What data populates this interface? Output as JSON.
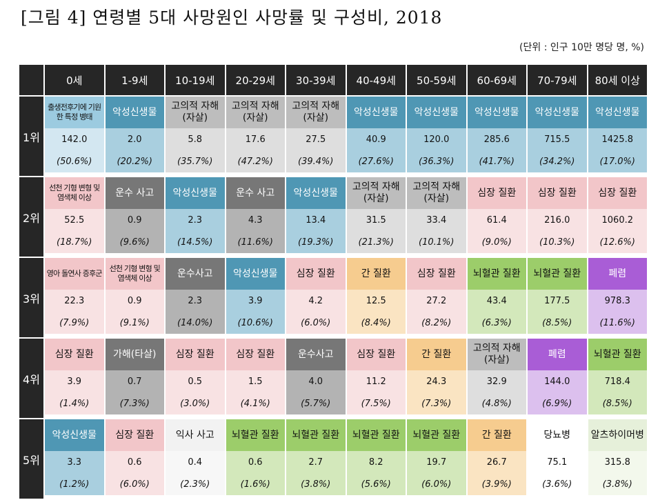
{
  "title": "[그림 4] 연령별 5대 사망원인 사망률 및 구성비, 2018",
  "unit": "(단위 : 인구 10만 명당 명, %)",
  "age_groups": [
    "0세",
    "1-9세",
    "10-19세",
    "20-29세",
    "30-39세",
    "40-49세",
    "50-59세",
    "60-69세",
    "70-79세",
    "80세 이상"
  ],
  "ranks": [
    {
      "label": "1위",
      "cells": [
        {
          "cause": "출생전후기에 기원한 특정 병태",
          "rate": "142.0",
          "pct": "(50.6%)",
          "cat": "perinatal",
          "small": true
        },
        {
          "cause": "악성신생물",
          "rate": "2.0",
          "pct": "(20.2%)",
          "cat": "cancer"
        },
        {
          "cause": "고의적 자해(자살)",
          "rate": "5.8",
          "pct": "(35.7%)",
          "cat": "suicide"
        },
        {
          "cause": "고의적 자해(자살)",
          "rate": "17.6",
          "pct": "(47.2%)",
          "cat": "suicide"
        },
        {
          "cause": "고의적 자해(자살)",
          "rate": "27.5",
          "pct": "(39.4%)",
          "cat": "suicide"
        },
        {
          "cause": "악성신생물",
          "rate": "40.9",
          "pct": "(27.6%)",
          "cat": "cancer"
        },
        {
          "cause": "악성신생물",
          "rate": "120.0",
          "pct": "(36.3%)",
          "cat": "cancer"
        },
        {
          "cause": "악성신생물",
          "rate": "285.6",
          "pct": "(41.7%)",
          "cat": "cancer"
        },
        {
          "cause": "악성신생물",
          "rate": "715.5",
          "pct": "(34.2%)",
          "cat": "cancer"
        },
        {
          "cause": "악성신생물",
          "rate": "1425.8",
          "pct": "(17.0%)",
          "cat": "cancer"
        }
      ]
    },
    {
      "label": "2위",
      "cells": [
        {
          "cause": "선천 기형 변형 및 염색체 이상",
          "rate": "52.5",
          "pct": "(18.7%)",
          "cat": "congenital",
          "small": true
        },
        {
          "cause": "운수 사고",
          "rate": "0.9",
          "pct": "(9.6%)",
          "cat": "transport"
        },
        {
          "cause": "악성신생물",
          "rate": "2.3",
          "pct": "(14.5%)",
          "cat": "cancer"
        },
        {
          "cause": "운수 사고",
          "rate": "4.3",
          "pct": "(11.6%)",
          "cat": "transport"
        },
        {
          "cause": "악성신생물",
          "rate": "13.4",
          "pct": "(19.3%)",
          "cat": "cancer"
        },
        {
          "cause": "고의적 자해(자살)",
          "rate": "31.5",
          "pct": "(21.3%)",
          "cat": "suicide"
        },
        {
          "cause": "고의적 자해(자살)",
          "rate": "33.4",
          "pct": "(10.1%)",
          "cat": "suicide"
        },
        {
          "cause": "심장 질환",
          "rate": "61.4",
          "pct": "(9.0%)",
          "cat": "heart"
        },
        {
          "cause": "심장 질환",
          "rate": "216.0",
          "pct": "(10.3%)",
          "cat": "heart"
        },
        {
          "cause": "심장 질환",
          "rate": "1060.2",
          "pct": "(12.6%)",
          "cat": "heart"
        }
      ]
    },
    {
      "label": "3위",
      "cells": [
        {
          "cause": "영아 돌연사 증후군",
          "rate": "22.3",
          "pct": "(7.9%)",
          "cat": "sids",
          "small": true
        },
        {
          "cause": "선천 기형 변형 및 염색체 이상",
          "rate": "0.9",
          "pct": "(9.1%)",
          "cat": "congenital",
          "small": true
        },
        {
          "cause": "운수사고",
          "rate": "2.3",
          "pct": "(14.0%)",
          "cat": "transport"
        },
        {
          "cause": "악성신생물",
          "rate": "3.9",
          "pct": "(10.6%)",
          "cat": "cancer"
        },
        {
          "cause": "심장 질환",
          "rate": "4.2",
          "pct": "(6.0%)",
          "cat": "heart"
        },
        {
          "cause": "간 질환",
          "rate": "12.5",
          "pct": "(8.4%)",
          "cat": "liver"
        },
        {
          "cause": "심장 질환",
          "rate": "27.2",
          "pct": "(8.2%)",
          "cat": "heart"
        },
        {
          "cause": "뇌혈관 질환",
          "rate": "43.4",
          "pct": "(6.3%)",
          "cat": "cereb"
        },
        {
          "cause": "뇌혈관 질환",
          "rate": "177.5",
          "pct": "(8.5%)",
          "cat": "cereb"
        },
        {
          "cause": "폐렴",
          "rate": "978.3",
          "pct": "(11.6%)",
          "cat": "pneu"
        }
      ]
    },
    {
      "label": "4위",
      "cells": [
        {
          "cause": "심장 질환",
          "rate": "3.9",
          "pct": "(1.4%)",
          "cat": "heart"
        },
        {
          "cause": "가해(타살)",
          "rate": "0.7",
          "pct": "(7.3%)",
          "cat": "homicide"
        },
        {
          "cause": "심장 질환",
          "rate": "0.5",
          "pct": "(3.0%)",
          "cat": "heart"
        },
        {
          "cause": "심장 질환",
          "rate": "1.5",
          "pct": "(4.1%)",
          "cat": "heart"
        },
        {
          "cause": "운수사고",
          "rate": "4.0",
          "pct": "(5.7%)",
          "cat": "transport"
        },
        {
          "cause": "심장 질환",
          "rate": "11.2",
          "pct": "(7.5%)",
          "cat": "heart"
        },
        {
          "cause": "간 질환",
          "rate": "24.3",
          "pct": "(7.3%)",
          "cat": "liver"
        },
        {
          "cause": "고의적 자해(자살)",
          "rate": "32.9",
          "pct": "(4.8%)",
          "cat": "suicide"
        },
        {
          "cause": "폐렴",
          "rate": "144.0",
          "pct": "(6.9%)",
          "cat": "pneu"
        },
        {
          "cause": "뇌혈관 질환",
          "rate": "718.4",
          "pct": "(8.5%)",
          "cat": "cereb"
        }
      ]
    },
    {
      "label": "5위",
      "cells": [
        {
          "cause": "악성신생물",
          "rate": "3.3",
          "pct": "(1.2%)",
          "cat": "cancer"
        },
        {
          "cause": "심장 질환",
          "rate": "0.6",
          "pct": "(6.0%)",
          "cat": "heart"
        },
        {
          "cause": "익사 사고",
          "rate": "0.4",
          "pct": "(2.3%)",
          "cat": "drowning"
        },
        {
          "cause": "뇌혈관 질환",
          "rate": "0.6",
          "pct": "(1.6%)",
          "cat": "cereb"
        },
        {
          "cause": "뇌혈관 질환",
          "rate": "2.7",
          "pct": "(3.8%)",
          "cat": "cereb"
        },
        {
          "cause": "뇌혈관 질환",
          "rate": "8.2",
          "pct": "(5.6%)",
          "cat": "cereb"
        },
        {
          "cause": "뇌혈관 질환",
          "rate": "19.7",
          "pct": "(6.0%)",
          "cat": "cereb"
        },
        {
          "cause": "간 질환",
          "rate": "26.7",
          "pct": "(3.9%)",
          "cat": "liver"
        },
        {
          "cause": "당뇨병",
          "rate": "75.1",
          "pct": "(3.6%)",
          "cat": "diabetes"
        },
        {
          "cause": "알츠하이머병",
          "rate": "315.8",
          "pct": "(3.8%)",
          "cat": "alzheimer"
        }
      ]
    }
  ],
  "category_colors": {
    "cancer": "#4f97b4",
    "suicide": "#bdbdbd",
    "transport": "#777777",
    "heart": "#f2c6c9",
    "liver": "#f6cc8f",
    "cerebrovascular": "#9ccd6a",
    "pneumonia": "#a95dd6",
    "header": "#262626"
  }
}
